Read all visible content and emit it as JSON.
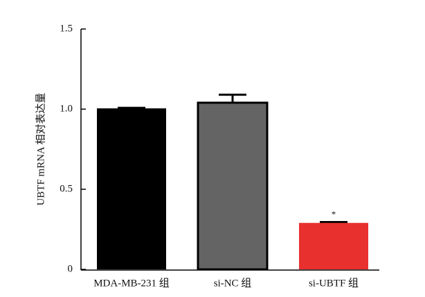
{
  "chart_data": {
    "type": "bar",
    "y_label": "UBTF mRNA 相对表达量",
    "categories": [
      "MDA-MB-231 组",
      "si-NC 组",
      "si-UBTF 组"
    ],
    "values": [
      1.005,
      1.04,
      0.29
    ],
    "errors": [
      0.003,
      0.05,
      0.005
    ],
    "colors": [
      "#000000",
      "#646464",
      "#e8302e"
    ],
    "significance": [
      null,
      null,
      "*"
    ],
    "ylim": [
      0,
      1.5
    ],
    "yticks": [
      0,
      0.5,
      {
        "value": 1,
        "label": "1.0"
      },
      1.5
    ],
    "grid": false
  }
}
